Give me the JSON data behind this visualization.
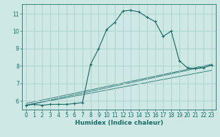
{
  "xlabel": "Humidex (Indice chaleur)",
  "background_color": "#cde8e5",
  "grid_color": "#a8ceca",
  "line_color": "#1a6b65",
  "xlim": [
    -0.5,
    23.5
  ],
  "ylim": [
    5.5,
    11.55
  ],
  "xticks": [
    0,
    1,
    2,
    3,
    4,
    5,
    6,
    7,
    8,
    9,
    10,
    11,
    12,
    13,
    14,
    15,
    16,
    17,
    18,
    19,
    20,
    21,
    22,
    23
  ],
  "yticks": [
    6,
    7,
    8,
    9,
    10,
    11
  ],
  "main_series": {
    "x": [
      0,
      1,
      2,
      3,
      4,
      5,
      6,
      7,
      8,
      9,
      10,
      11,
      12,
      13,
      14,
      15,
      16,
      17,
      18,
      19,
      20,
      21,
      22,
      23
    ],
    "y": [
      5.75,
      5.8,
      5.75,
      5.8,
      5.8,
      5.8,
      5.85,
      5.9,
      8.1,
      9.0,
      10.1,
      10.5,
      11.15,
      11.2,
      11.1,
      10.8,
      10.55,
      9.7,
      10.0,
      8.3,
      7.9,
      7.85,
      7.9,
      8.05
    ]
  },
  "diagonal_lines": [
    {
      "x": [
        0,
        23
      ],
      "y": [
        5.75,
        8.05
      ]
    },
    {
      "x": [
        0,
        23
      ],
      "y": [
        5.75,
        7.75
      ]
    },
    {
      "x": [
        0,
        23
      ],
      "y": [
        5.85,
        8.1
      ]
    }
  ],
  "tick_labelsize": 5.5,
  "xlabel_fontsize": 6.5,
  "xlabel_fontweight": "bold"
}
